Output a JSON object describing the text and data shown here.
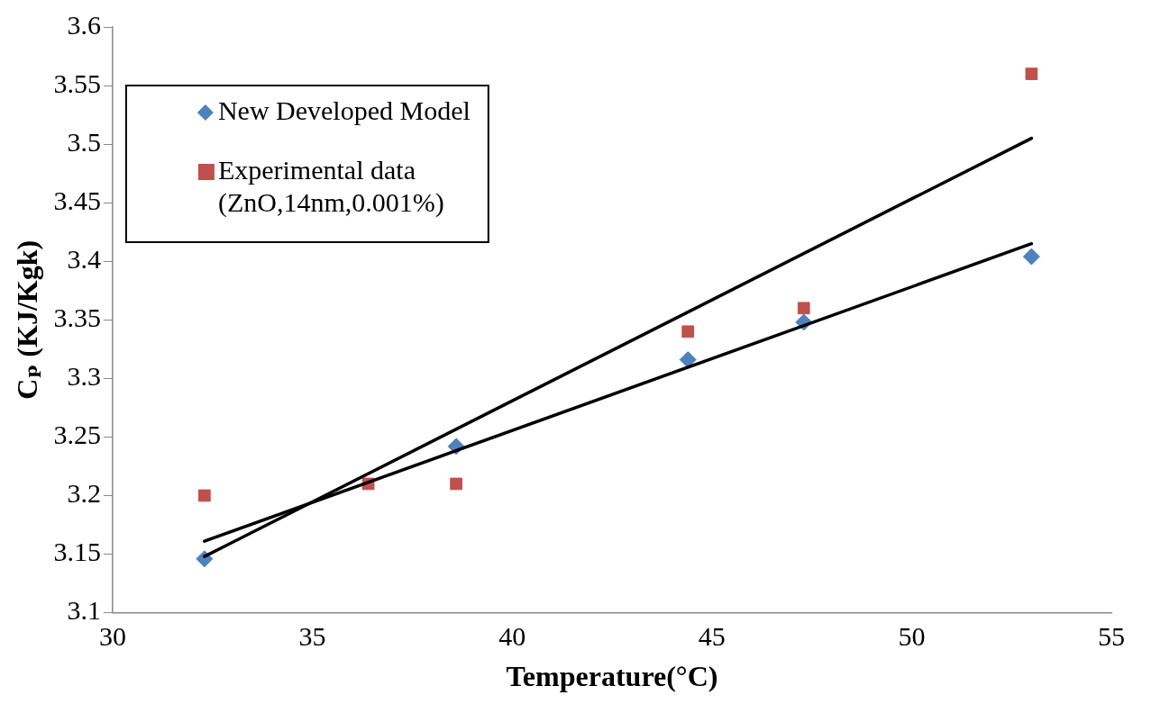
{
  "chart_data": {
    "type": "scatter",
    "xlabel": "Temperature(°C)",
    "ylabel": "Cₚ (KJ/Kgk)",
    "xlim": [
      30,
      55
    ],
    "xticks": [
      30,
      35,
      40,
      45,
      50,
      55
    ],
    "ylim": [
      3.1,
      3.6
    ],
    "yticks": [
      3.1,
      3.15,
      3.2,
      3.25,
      3.3,
      3.35,
      3.4,
      3.45,
      3.5,
      3.55,
      3.6
    ],
    "grid": false,
    "legend": "top left",
    "series": [
      {
        "name": "New Developed Model",
        "type": "scatter",
        "marker": "diamond",
        "color": "#4f81bd",
        "x": [
          32.3,
          38.6,
          44.4,
          47.3,
          53.0
        ],
        "values": [
          3.146,
          3.242,
          3.316,
          3.348,
          3.404
        ]
      },
      {
        "name": "Experimental data (ZnO,14nm,0.001%)",
        "type": "scatter",
        "marker": "square",
        "color": "#c0504d",
        "x": [
          32.3,
          36.4,
          38.6,
          44.4,
          47.3,
          53.0
        ],
        "values": [
          3.2,
          3.21,
          3.21,
          3.34,
          3.36,
          3.56
        ]
      },
      {
        "type": "line",
        "marker": "none",
        "color": "#000000",
        "x": [
          32.3,
          53.0
        ],
        "values": [
          3.148,
          3.505
        ]
      },
      {
        "type": "line",
        "marker": "none",
        "color": "#000000",
        "x": [
          32.3,
          53.0
        ],
        "values": [
          3.161,
          3.415
        ]
      }
    ]
  }
}
